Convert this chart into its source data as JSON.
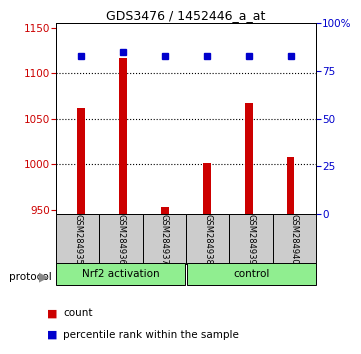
{
  "title": "GDS3476 / 1452446_a_at",
  "samples": [
    "GSM284935",
    "GSM284936",
    "GSM284937",
    "GSM284938",
    "GSM284939",
    "GSM284940"
  ],
  "counts": [
    1062,
    1117,
    953,
    1001,
    1067,
    1008
  ],
  "percentile_ranks": [
    83,
    85,
    83,
    83,
    83,
    83
  ],
  "ylim_left": [
    945,
    1155
  ],
  "ylim_right": [
    0,
    100
  ],
  "yticks_left": [
    950,
    1000,
    1050,
    1100,
    1150
  ],
  "yticks_right": [
    0,
    25,
    50,
    75,
    100
  ],
  "bar_color": "#cc0000",
  "dot_color": "#0000cc",
  "group1_label": "Nrf2 activation",
  "group2_label": "control",
  "protocol_label": "protocol",
  "legend_count_label": "count",
  "legend_pct_label": "percentile rank within the sample",
  "group_bg_color": "#90ee90",
  "sample_bg_color": "#cccccc",
  "baseline": 945
}
